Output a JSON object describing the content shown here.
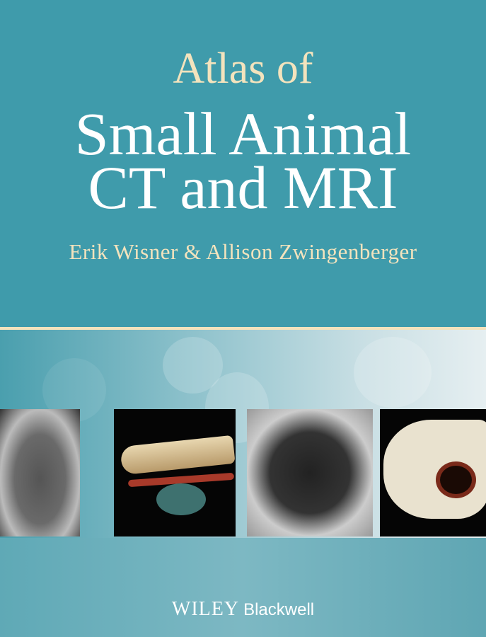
{
  "cover": {
    "title_line1": "Atlas of",
    "title_line2": "Small Animal",
    "title_line3": "CT and MRI",
    "authors": "Erik Wisner & Allison Zwingenberger",
    "publisher_wiley": "WILEY",
    "publisher_blackwell": "Blackwell"
  },
  "colors": {
    "background": "#3f9bab",
    "accent": "#f3e3bd",
    "title": "#ffffff"
  },
  "images": [
    "mri-brain-axial",
    "ct-3d-spine-vessels",
    "ct-thorax-lungs",
    "brain-gross-section"
  ]
}
